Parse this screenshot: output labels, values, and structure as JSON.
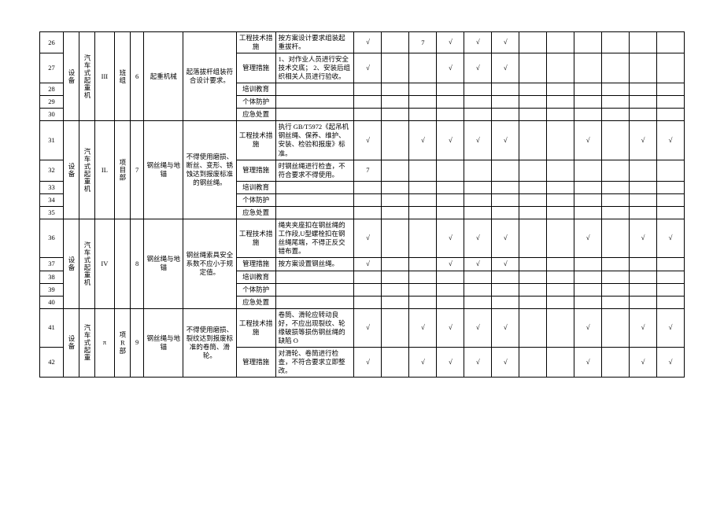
{
  "check": "√",
  "rows": {
    "r26": {
      "num": "26",
      "meas": "工程技术措施",
      "desc": "按方案设计要求组装起重拔杆。",
      "n": "7"
    },
    "r27": {
      "num": "27",
      "meas": "管理措施",
      "desc": "1、对作业人员进行安全技术交底；\n2、安装后组织相关人员进行验收。"
    },
    "r28": {
      "num": "28",
      "meas": "培训教育"
    },
    "r29": {
      "num": "29",
      "meas": "个体防护"
    },
    "r30": {
      "num": "30",
      "meas": "应急处置"
    },
    "r31": {
      "num": "31",
      "meas": "工程技术措施",
      "desc": "执行 GB/T5972《起吊机钢丝绳、保养、维护、安装、检验和报废》标准。"
    },
    "r32": {
      "num": "32",
      "meas": "管理措施",
      "desc": "时钢丝绳进行检查，不符合要求不得使用。",
      "n": "7"
    },
    "r33": {
      "num": "33",
      "meas": "培训教育"
    },
    "r34": {
      "num": "34",
      "meas": "个体防护"
    },
    "r35": {
      "num": "35",
      "meas": "应急处置"
    },
    "r36": {
      "num": "36",
      "meas": "工程技术措施",
      "desc": "绳夹夹座扣在钢丝绳的工作段,U型螺栓扣在钢丝绳尾端，不得正反交错布置。"
    },
    "r37": {
      "num": "37",
      "meas": "管理措施",
      "desc": "按方案设置钢丝绳。"
    },
    "r38": {
      "num": "38",
      "meas": "培训教育"
    },
    "r39": {
      "num": "39",
      "meas": "个体防护"
    },
    "r40": {
      "num": "40",
      "meas": "应急处置"
    },
    "r41": {
      "num": "41",
      "meas": "工程技术措施",
      "desc": "卷筒、滑轮应转动良好，不应出现裂纹、轮缘破损等损伤钢丝绳的缺陷 O"
    },
    "r42": {
      "num": "42",
      "meas": "管理措施",
      "desc": "对滑轮、卷筒进行检查，不符合要求立即整改。"
    }
  },
  "groups": {
    "g1": {
      "dev": "设备",
      "name": "汽车式起重机",
      "lvl": "III",
      "grp": "班组",
      "mid": "6",
      "mech": "起重机械",
      "req": "起落拔杆组装符合设计要求。"
    },
    "g2": {
      "dev": "设备",
      "name": "汽车式起重机",
      "lvl": "IL",
      "grp": "项目部",
      "mid": "7",
      "mech": "钢丝绳与地锚",
      "req": "不得使用磨损、断丝、变形、锈蚀达到报废标准的钢丝绳。"
    },
    "g3": {
      "dev": "设备",
      "name": "汽车式起重机",
      "lvl": "IV",
      "grp": "",
      "mid": "8",
      "mech": "钢丝绳与地锚",
      "req": "钢丝绳索具安全系数不应小于规定值。"
    },
    "g4": {
      "dev": "设备",
      "name": "汽车式起重",
      "lvl": "π",
      "grp": "项R部",
      "mid": "9",
      "mech": "钢丝绳与地锚",
      "req": "不得使用磨损、裂纹达到报废标准的卷筒、滑轮。"
    }
  }
}
